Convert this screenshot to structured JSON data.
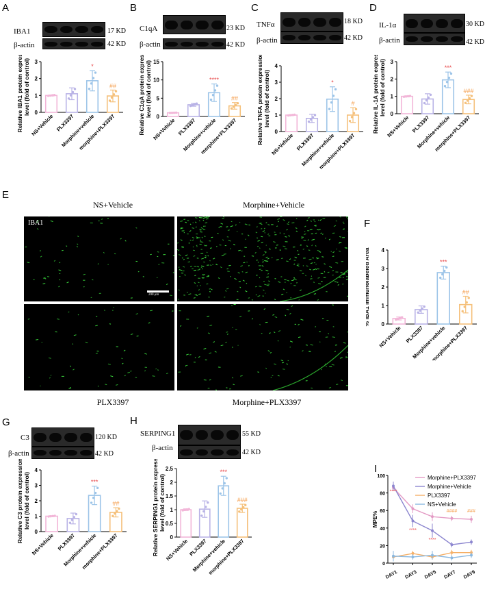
{
  "labels": {
    "A": "A",
    "B": "B",
    "C": "C",
    "D": "D",
    "E": "E",
    "F": "F",
    "G": "G",
    "H": "H",
    "I": "I"
  },
  "blots": {
    "A": {
      "target": "IBA1",
      "target_kd": "17 KD",
      "actin": "β-actin",
      "actin_kd": "42 KD"
    },
    "B": {
      "target": "C1qA",
      "target_kd": "23 KD",
      "actin": "β-actin",
      "actin_kd": "42 KD"
    },
    "C": {
      "target": "TNFα",
      "target_kd": "18 KD",
      "actin": "β-actin",
      "actin_kd": "42 KD"
    },
    "D": {
      "target": "IL-1α",
      "target_kd": "30 KD",
      "actin": "β-actin",
      "actin_kd": "42 KD"
    },
    "G": {
      "target": "C3",
      "target_kd": "120 KD",
      "actin": "β-actin",
      "actin_kd": "42 KD"
    },
    "H": {
      "target": "SERPING1",
      "target_kd": "55 KD",
      "actin": "β-actin",
      "actin_kd": "42 KD"
    }
  },
  "images": {
    "titles": [
      "NS+Vehicle",
      "Morphine+Vehicle",
      "PLX3397",
      "Morphine+PLX3397"
    ],
    "stain_label": "IBA1",
    "scale_label": "200 μm"
  },
  "chart_data": [
    {
      "id": "A",
      "type": "bar",
      "categories": [
        "NS+Vehicle",
        "PLX3397",
        "Morphine+vehicle",
        "morphine+PLX3397"
      ],
      "values": [
        1.0,
        1.1,
        1.87,
        0.97
      ],
      "errors": [
        0.03,
        0.35,
        0.6,
        0.35
      ],
      "ylabel": "Relative IBA1 protein expression level (fold of control)",
      "ylim": [
        0,
        3
      ],
      "yticks": [
        0,
        1,
        2,
        3
      ],
      "sig": [
        "",
        "",
        "*",
        "##"
      ],
      "colors": [
        "#f2b6d8",
        "#b9b3e6",
        "#9cc4e8",
        "#f5c07a"
      ]
    },
    {
      "id": "B",
      "type": "bar",
      "categories": [
        "NS+Vehicle",
        "PLX3397",
        "Morphine+vehicle",
        "morphine+PLX3397"
      ],
      "values": [
        1.0,
        3.2,
        6.5,
        2.9
      ],
      "errors": [
        0.05,
        0.4,
        2.4,
        0.9
      ],
      "ylabel": "Relative C1qA protein expression level (fold of control)",
      "ylim": [
        0,
        15
      ],
      "yticks": [
        0,
        5,
        10,
        15
      ],
      "sig": [
        "",
        "",
        "****",
        "##"
      ],
      "colors": [
        "#f2b6d8",
        "#b9b3e6",
        "#9cc4e8",
        "#f5c07a"
      ]
    },
    {
      "id": "C",
      "type": "bar",
      "categories": [
        "NS+Vehicle",
        "PLX3397",
        "Morphine+vehicle",
        "morphine+PLX3397"
      ],
      "values": [
        1.0,
        0.8,
        1.97,
        1.0
      ],
      "errors": [
        0.03,
        0.25,
        0.75,
        0.45
      ],
      "ylabel": "Relative TNFA protein expression level (fold of control)",
      "ylim": [
        0,
        4
      ],
      "yticks": [
        0,
        1,
        2,
        3,
        4
      ],
      "sig": [
        "",
        "",
        "*",
        "#"
      ],
      "colors": [
        "#f2b6d8",
        "#b9b3e6",
        "#9cc4e8",
        "#f5c07a"
      ]
    },
    {
      "id": "D",
      "type": "bar",
      "categories": [
        "NS+Vehicle",
        "PLX3397",
        "Morphine+vehicle",
        "morphine+PLX3397"
      ],
      "values": [
        1.0,
        0.85,
        1.95,
        0.82
      ],
      "errors": [
        0.03,
        0.3,
        0.45,
        0.25
      ],
      "ylabel": "Relative IL-1A protein expression level (fold of control)",
      "ylim": [
        0,
        3
      ],
      "yticks": [
        0,
        1,
        2,
        3
      ],
      "sig": [
        "",
        "",
        "***",
        "###"
      ],
      "colors": [
        "#f2b6d8",
        "#b9b3e6",
        "#9cc4e8",
        "#f5c07a"
      ]
    },
    {
      "id": "F",
      "type": "bar",
      "categories": [
        "NS+Vehicle",
        "PLX3397",
        "Morphine+vehicle",
        "morphine+PLX3397"
      ],
      "values": [
        0.3,
        0.78,
        2.78,
        1.05
      ],
      "errors": [
        0.08,
        0.2,
        0.35,
        0.45
      ],
      "ylabel": "% IBA1 Immunolabeled Area",
      "ylim": [
        0,
        4
      ],
      "yticks": [
        0,
        1,
        2,
        3,
        4
      ],
      "sig": [
        "",
        "",
        "***",
        "##"
      ],
      "colors": [
        "#f2b6d8",
        "#b9b3e6",
        "#9cc4e8",
        "#f5c07a"
      ]
    },
    {
      "id": "G",
      "type": "bar",
      "categories": [
        "NS+Vehicle",
        "PLX3397",
        "Morphine+vehicle",
        "morphine+PLX3397"
      ],
      "values": [
        1.0,
        0.85,
        2.35,
        1.25
      ],
      "errors": [
        0.03,
        0.35,
        0.6,
        0.3
      ],
      "ylabel": "Relative C3 protein expression level (fold of control)",
      "ylim": [
        0,
        4
      ],
      "yticks": [
        0,
        1,
        2,
        3,
        4
      ],
      "sig": [
        "",
        "",
        "***",
        "##"
      ],
      "colors": [
        "#f2b6d8",
        "#b9b3e6",
        "#9cc4e8",
        "#f5c07a"
      ]
    },
    {
      "id": "H",
      "type": "bar",
      "categories": [
        "NS+Vehicle",
        "PLX3397",
        "Morphine+vehicle",
        "morphine+PLX3397"
      ],
      "values": [
        1.0,
        1.02,
        1.87,
        1.05
      ],
      "errors": [
        0.03,
        0.3,
        0.35,
        0.15
      ],
      "ylabel": "Relative SERPING1 protein expression level (fold of control)",
      "ylim": [
        0,
        2.5
      ],
      "yticks": [
        0,
        0.5,
        1.0,
        1.5,
        2.0,
        2.5
      ],
      "sig": [
        "",
        "",
        "***",
        "###"
      ],
      "colors": [
        "#f2b6d8",
        "#b9b3e6",
        "#9cc4e8",
        "#f5c07a"
      ]
    },
    {
      "id": "I",
      "type": "line",
      "x": [
        "DAY1",
        "DAY3",
        "DAY5",
        "DAY7",
        "DAY9"
      ],
      "ylabel": "MPE%",
      "ylim": [
        0,
        100
      ],
      "yticks": [
        0,
        20,
        40,
        60,
        80,
        100
      ],
      "series": [
        {
          "name": "Morphine+PLX3397",
          "color": "#e39ac4",
          "values": [
            86,
            62,
            53,
            51,
            50
          ],
          "errors": [
            4,
            5,
            5,
            3,
            4
          ],
          "marker": "circle"
        },
        {
          "name": "Morphine+Vehicle",
          "color": "#8c86cf",
          "values": [
            88,
            48,
            37,
            21,
            24
          ],
          "errors": [
            5,
            7,
            8,
            3,
            3
          ],
          "marker": "triangle"
        },
        {
          "name": "PLX3397",
          "color": "#f5b068",
          "values": [
            7,
            11,
            7,
            12,
            12
          ],
          "errors": [
            3,
            3,
            3,
            3,
            3
          ],
          "marker": "square"
        },
        {
          "name": "NS+Vehicle",
          "color": "#8ab8e0",
          "values": [
            8,
            7,
            9,
            6,
            9
          ],
          "errors": [
            6,
            3,
            5,
            3,
            3
          ],
          "marker": "triangle-down"
        }
      ],
      "annotations": [
        {
          "x": "DAY1",
          "y": 80,
          "text": "****"
        },
        {
          "x": "DAY3",
          "y": 36,
          "text": "****"
        },
        {
          "x": "DAY5",
          "y": 25,
          "text": "****"
        },
        {
          "x": "DAY7",
          "y": 58,
          "text": "####"
        },
        {
          "x": "DAY9",
          "y": 58,
          "text": "###"
        }
      ]
    }
  ]
}
